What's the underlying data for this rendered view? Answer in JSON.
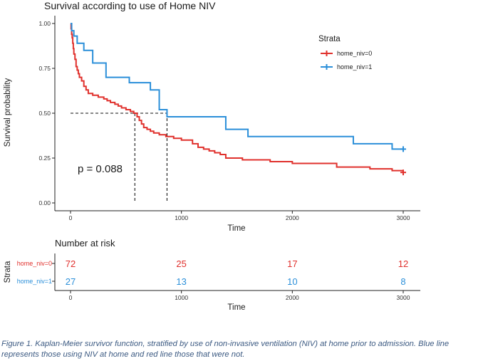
{
  "chart_data": {
    "type": "line",
    "title": "Survival according to use of Home NIV",
    "xlabel": "Time",
    "ylabel": "Survival probability",
    "xlim": [
      0,
      3000
    ],
    "ylim": [
      0,
      1
    ],
    "x_ticks": [
      "0",
      "1000",
      "2000",
      "3000"
    ],
    "y_ticks": [
      "0.00",
      "0.25",
      "0.50",
      "0.75",
      "1.00"
    ],
    "legend_title": "Strata",
    "legend_position": "top-right",
    "pvalue_text": "p = 0.088",
    "median_line_y": 0.5,
    "series": [
      {
        "name": "home_niv=0",
        "color": "#e0302c",
        "median_time": 580,
        "censor_time": 3000,
        "x": [
          0,
          5,
          10,
          15,
          20,
          25,
          30,
          40,
          50,
          60,
          70,
          80,
          100,
          120,
          140,
          160,
          200,
          250,
          300,
          330,
          360,
          400,
          430,
          460,
          500,
          540,
          570,
          600,
          620,
          640,
          660,
          690,
          720,
          750,
          800,
          860,
          930,
          970,
          1000,
          1100,
          1150,
          1200,
          1250,
          1300,
          1350,
          1400,
          1500,
          1550,
          1600,
          1700,
          1800,
          1900,
          2000,
          2150,
          2250,
          2400,
          2500,
          2700,
          2900,
          3000
        ],
        "y": [
          1.0,
          0.97,
          0.94,
          0.92,
          0.89,
          0.86,
          0.83,
          0.8,
          0.76,
          0.74,
          0.72,
          0.7,
          0.68,
          0.65,
          0.63,
          0.61,
          0.6,
          0.59,
          0.58,
          0.57,
          0.56,
          0.55,
          0.54,
          0.53,
          0.52,
          0.51,
          0.5,
          0.48,
          0.46,
          0.44,
          0.42,
          0.41,
          0.4,
          0.39,
          0.38,
          0.37,
          0.36,
          0.36,
          0.35,
          0.33,
          0.31,
          0.3,
          0.29,
          0.28,
          0.27,
          0.25,
          0.25,
          0.24,
          0.24,
          0.24,
          0.23,
          0.23,
          0.22,
          0.22,
          0.22,
          0.2,
          0.2,
          0.19,
          0.18,
          0.17
        ]
      },
      {
        "name": "home_niv=1",
        "color": "#2b8fd9",
        "median_time": 870,
        "censor_time": 3000,
        "x": [
          0,
          10,
          30,
          60,
          120,
          200,
          320,
          500,
          530,
          720,
          800,
          870,
          1300,
          1400,
          1600,
          2000,
          2550,
          2900,
          3000
        ],
        "y": [
          1.0,
          0.96,
          0.93,
          0.89,
          0.85,
          0.78,
          0.7,
          0.7,
          0.67,
          0.63,
          0.52,
          0.48,
          0.48,
          0.41,
          0.37,
          0.37,
          0.33,
          0.3,
          0.3
        ]
      }
    ],
    "risk_table": {
      "title": "Number at risk",
      "y_axis_label": "Strata",
      "xlabel": "Time",
      "times": [
        "0",
        "1000",
        "2000",
        "3000"
      ],
      "rows": [
        {
          "label": "home_niv=0",
          "color": "#e0302c",
          "values": [
            "72",
            "25",
            "17",
            "12"
          ]
        },
        {
          "label": "home_niv=1",
          "color": "#2b8fd9",
          "values": [
            "27",
            "13",
            "10",
            "8"
          ]
        }
      ]
    }
  },
  "caption": "Figure 1. Kaplan-Meier survivor function, stratified by use of non-invasive ventilation (NIV) at home prior to admission. Blue line represents those using NIV at home and red line those that were not."
}
